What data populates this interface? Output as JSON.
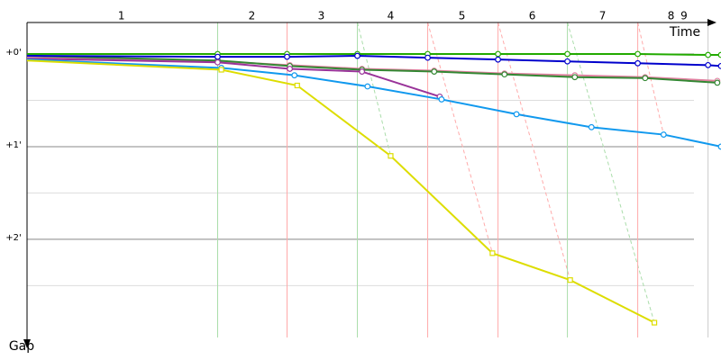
{
  "chart_data": {
    "type": "line",
    "x_label": "Time",
    "y_label": "Gap",
    "xlim": [
      0,
      7.5
    ],
    "ylim": [
      -0.34,
      3.06
    ],
    "inverted_y": true,
    "yticks": [
      {
        "value": 0,
        "label": "+0'"
      },
      {
        "value": 1,
        "label": "+1'"
      },
      {
        "value": 2,
        "label": "+2'"
      }
    ],
    "minor_yticks": [
      0.5,
      1.5,
      2.5
    ],
    "laps": {
      "labels": [
        1,
        2,
        3,
        4,
        5,
        6,
        7,
        8,
        9
      ],
      "x": [
        1.02,
        2.43,
        3.18,
        3.93,
        4.7,
        5.46,
        6.22,
        6.96,
        7.1
      ]
    },
    "lap_lines": [
      {
        "x": 2.06,
        "color": "#aaddaa"
      },
      {
        "x": 2.81,
        "color": "#ffaaaa"
      },
      {
        "x": 3.57,
        "color": "#aaddaa",
        "dash_to": [
          3.93,
          1.1
        ]
      },
      {
        "x": 4.33,
        "color": "#ffaaaa",
        "dash_to": [
          5.03,
          2.15
        ]
      },
      {
        "x": 5.09,
        "color": "#ffaaaa",
        "dash_to": [
          5.87,
          2.44
        ]
      },
      {
        "x": 5.84,
        "color": "#aaddaa",
        "dash_to": [
          6.78,
          2.9
        ]
      },
      {
        "x": 6.6,
        "color": "#ffaaaa",
        "dash_to": [
          6.88,
          0.87
        ]
      },
      {
        "x": 7.36,
        "color": "#cccccc"
      }
    ],
    "series": [
      {
        "color": "#22aa00",
        "marker": "circle",
        "x": [
          0,
          2.06,
          2.81,
          3.57,
          4.33,
          5.09,
          5.84,
          6.6,
          7.36,
          7.5
        ],
        "values": [
          0,
          0,
          0,
          0,
          0,
          0,
          0,
          0,
          0.01,
          0.01
        ]
      },
      {
        "color": "#e080a0",
        "marker": "circle",
        "x": [
          0,
          2.06,
          2.84,
          3.62,
          4.4,
          5.16,
          5.92,
          6.68,
          7.46
        ],
        "values": [
          0.04,
          0.08,
          0.12,
          0.16,
          0.18,
          0.21,
          0.23,
          0.25,
          0.29
        ]
      },
      {
        "color": "#338833",
        "marker": "circle",
        "x": [
          0,
          2.06,
          2.84,
          3.62,
          4.4,
          5.16,
          5.92,
          6.68,
          7.46
        ],
        "values": [
          0.02,
          0.07,
          0.13,
          0.17,
          0.19,
          0.22,
          0.25,
          0.26,
          0.31
        ]
      },
      {
        "color": "#0000cc",
        "marker": "circle",
        "x": [
          0,
          2.06,
          2.81,
          3.57,
          4.33,
          5.09,
          5.84,
          6.6,
          7.36,
          7.5
        ],
        "values": [
          0.02,
          0.03,
          0.03,
          0.02,
          0.04,
          0.06,
          0.08,
          0.1,
          0.12,
          0.13
        ]
      },
      {
        "color": "#993399",
        "marker": "circle",
        "x": [
          0,
          2.06,
          2.84,
          3.62,
          4.46
        ],
        "values": [
          0.05,
          0.09,
          0.16,
          0.19,
          0.46
        ]
      },
      {
        "color": "#1199ee",
        "marker": "circle",
        "x": [
          0,
          2.1,
          2.89,
          3.68,
          4.48,
          5.29,
          6.1,
          6.88,
          7.5
        ],
        "values": [
          0.06,
          0.15,
          0.23,
          0.35,
          0.49,
          0.65,
          0.79,
          0.87,
          1.0
        ]
      },
      {
        "color": "#dddd00",
        "marker": "square",
        "x": [
          0,
          2.1,
          2.92,
          3.93,
          5.03,
          5.87,
          6.78
        ],
        "values": [
          0.07,
          0.17,
          0.34,
          1.1,
          2.15,
          2.44,
          2.9
        ]
      }
    ]
  }
}
